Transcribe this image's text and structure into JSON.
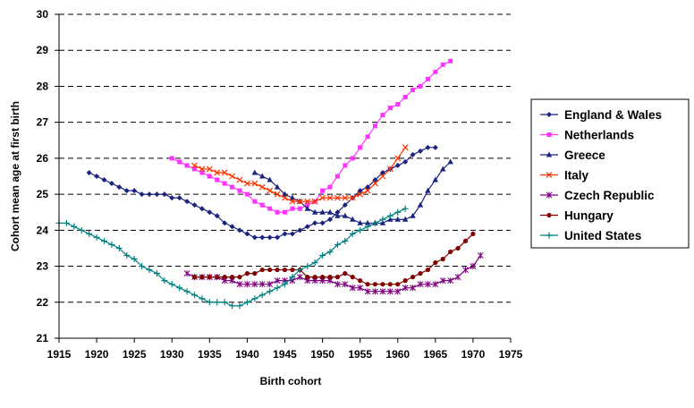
{
  "chart_data": {
    "type": "line",
    "title": "",
    "xlabel": "Birth cohort",
    "ylabel": "Cohort mean age at first birth",
    "xlim": [
      1915,
      1975
    ],
    "ylim": [
      21,
      30
    ],
    "xticks": [
      1915,
      1920,
      1925,
      1930,
      1935,
      1940,
      1945,
      1950,
      1955,
      1960,
      1965,
      1970,
      1975
    ],
    "yticks": [
      21,
      22,
      23,
      24,
      25,
      26,
      27,
      28,
      29,
      30
    ],
    "grid": "horizontal dashed",
    "legend_position": "right",
    "series": [
      {
        "name": "England & Wales",
        "color": "#1a237e",
        "marker": "diamond",
        "points": [
          [
            1919,
            25.6
          ],
          [
            1920,
            25.5
          ],
          [
            1921,
            25.4
          ],
          [
            1922,
            25.3
          ],
          [
            1923,
            25.2
          ],
          [
            1924,
            25.1
          ],
          [
            1925,
            25.1
          ],
          [
            1926,
            25.0
          ],
          [
            1927,
            25.0
          ],
          [
            1928,
            25.0
          ],
          [
            1929,
            25.0
          ],
          [
            1930,
            24.9
          ],
          [
            1931,
            24.9
          ],
          [
            1932,
            24.8
          ],
          [
            1933,
            24.7
          ],
          [
            1934,
            24.6
          ],
          [
            1935,
            24.5
          ],
          [
            1936,
            24.4
          ],
          [
            1937,
            24.2
          ],
          [
            1938,
            24.1
          ],
          [
            1939,
            24.0
          ],
          [
            1940,
            23.9
          ],
          [
            1941,
            23.8
          ],
          [
            1942,
            23.8
          ],
          [
            1943,
            23.8
          ],
          [
            1944,
            23.8
          ],
          [
            1945,
            23.9
          ],
          [
            1946,
            23.9
          ],
          [
            1947,
            24.0
          ],
          [
            1948,
            24.1
          ],
          [
            1949,
            24.2
          ],
          [
            1950,
            24.2
          ],
          [
            1951,
            24.3
          ],
          [
            1952,
            24.5
          ],
          [
            1953,
            24.7
          ],
          [
            1954,
            24.9
          ],
          [
            1955,
            25.1
          ],
          [
            1956,
            25.2
          ],
          [
            1957,
            25.4
          ],
          [
            1958,
            25.6
          ],
          [
            1959,
            25.7
          ],
          [
            1960,
            25.8
          ],
          [
            1961,
            25.9
          ],
          [
            1962,
            26.1
          ],
          [
            1963,
            26.2
          ],
          [
            1964,
            26.3
          ],
          [
            1965,
            26.3
          ]
        ]
      },
      {
        "name": "Netherlands",
        "color": "#ff33ff",
        "marker": "square",
        "points": [
          [
            1930,
            26.0
          ],
          [
            1931,
            25.9
          ],
          [
            1932,
            25.8
          ],
          [
            1933,
            25.7
          ],
          [
            1934,
            25.6
          ],
          [
            1935,
            25.5
          ],
          [
            1936,
            25.4
          ],
          [
            1937,
            25.3
          ],
          [
            1938,
            25.2
          ],
          [
            1939,
            25.1
          ],
          [
            1940,
            25.0
          ],
          [
            1941,
            24.8
          ],
          [
            1942,
            24.7
          ],
          [
            1943,
            24.6
          ],
          [
            1944,
            24.5
          ],
          [
            1945,
            24.5
          ],
          [
            1946,
            24.6
          ],
          [
            1947,
            24.6
          ],
          [
            1948,
            24.7
          ],
          [
            1949,
            24.8
          ],
          [
            1950,
            25.1
          ],
          [
            1951,
            25.2
          ],
          [
            1952,
            25.5
          ],
          [
            1953,
            25.8
          ],
          [
            1954,
            26.0
          ],
          [
            1955,
            26.3
          ],
          [
            1956,
            26.6
          ],
          [
            1957,
            26.9
          ],
          [
            1958,
            27.2
          ],
          [
            1959,
            27.4
          ],
          [
            1960,
            27.5
          ],
          [
            1961,
            27.7
          ],
          [
            1962,
            27.9
          ],
          [
            1963,
            28.0
          ],
          [
            1964,
            28.2
          ],
          [
            1965,
            28.4
          ],
          [
            1966,
            28.6
          ],
          [
            1967,
            28.7
          ]
        ]
      },
      {
        "name": "Greece",
        "color": "#1a237e",
        "marker": "triangle",
        "points": [
          [
            1941,
            25.6
          ],
          [
            1942,
            25.5
          ],
          [
            1943,
            25.4
          ],
          [
            1944,
            25.2
          ],
          [
            1945,
            25.0
          ],
          [
            1946,
            24.9
          ],
          [
            1947,
            24.8
          ],
          [
            1948,
            24.6
          ],
          [
            1949,
            24.5
          ],
          [
            1950,
            24.5
          ],
          [
            1951,
            24.5
          ],
          [
            1952,
            24.4
          ],
          [
            1953,
            24.4
          ],
          [
            1954,
            24.3
          ],
          [
            1955,
            24.2
          ],
          [
            1956,
            24.2
          ],
          [
            1957,
            24.2
          ],
          [
            1958,
            24.2
          ],
          [
            1959,
            24.3
          ],
          [
            1960,
            24.3
          ],
          [
            1961,
            24.3
          ],
          [
            1962,
            24.4
          ],
          [
            1963,
            24.7
          ],
          [
            1964,
            25.1
          ],
          [
            1965,
            25.4
          ],
          [
            1966,
            25.7
          ],
          [
            1967,
            25.9
          ]
        ]
      },
      {
        "name": "Italy",
        "color": "#ff3300",
        "marker": "x",
        "points": [
          [
            1933,
            25.8
          ],
          [
            1934,
            25.7
          ],
          [
            1935,
            25.7
          ],
          [
            1936,
            25.6
          ],
          [
            1937,
            25.6
          ],
          [
            1938,
            25.5
          ],
          [
            1939,
            25.4
          ],
          [
            1940,
            25.3
          ],
          [
            1941,
            25.3
          ],
          [
            1942,
            25.2
          ],
          [
            1943,
            25.1
          ],
          [
            1944,
            25.0
          ],
          [
            1945,
            24.9
          ],
          [
            1946,
            24.8
          ],
          [
            1947,
            24.8
          ],
          [
            1948,
            24.8
          ],
          [
            1949,
            24.8
          ],
          [
            1950,
            24.9
          ],
          [
            1951,
            24.9
          ],
          [
            1952,
            24.9
          ],
          [
            1953,
            24.9
          ],
          [
            1954,
            24.9
          ],
          [
            1955,
            25.0
          ],
          [
            1956,
            25.1
          ],
          [
            1957,
            25.3
          ],
          [
            1958,
            25.5
          ],
          [
            1959,
            25.7
          ],
          [
            1960,
            26.0
          ],
          [
            1961,
            26.3
          ]
        ]
      },
      {
        "name": "Czech Republic",
        "color": "#800080",
        "marker": "star",
        "points": [
          [
            1932,
            22.8
          ],
          [
            1933,
            22.7
          ],
          [
            1934,
            22.7
          ],
          [
            1935,
            22.7
          ],
          [
            1936,
            22.7
          ],
          [
            1937,
            22.6
          ],
          [
            1938,
            22.6
          ],
          [
            1939,
            22.5
          ],
          [
            1940,
            22.5
          ],
          [
            1941,
            22.5
          ],
          [
            1942,
            22.5
          ],
          [
            1943,
            22.5
          ],
          [
            1944,
            22.6
          ],
          [
            1945,
            22.6
          ],
          [
            1946,
            22.6
          ],
          [
            1947,
            22.7
          ],
          [
            1948,
            22.6
          ],
          [
            1949,
            22.6
          ],
          [
            1950,
            22.6
          ],
          [
            1951,
            22.6
          ],
          [
            1952,
            22.5
          ],
          [
            1953,
            22.5
          ],
          [
            1954,
            22.4
          ],
          [
            1955,
            22.4
          ],
          [
            1956,
            22.3
          ],
          [
            1957,
            22.3
          ],
          [
            1958,
            22.3
          ],
          [
            1959,
            22.3
          ],
          [
            1960,
            22.3
          ],
          [
            1961,
            22.4
          ],
          [
            1962,
            22.4
          ],
          [
            1963,
            22.5
          ],
          [
            1964,
            22.5
          ],
          [
            1965,
            22.5
          ],
          [
            1966,
            22.6
          ],
          [
            1967,
            22.6
          ],
          [
            1968,
            22.7
          ],
          [
            1969,
            22.9
          ],
          [
            1970,
            23.0
          ],
          [
            1971,
            23.3
          ]
        ]
      },
      {
        "name": "Hungary",
        "color": "#800000",
        "marker": "circle",
        "points": [
          [
            1933,
            22.7
          ],
          [
            1934,
            22.7
          ],
          [
            1935,
            22.7
          ],
          [
            1936,
            22.7
          ],
          [
            1937,
            22.7
          ],
          [
            1938,
            22.7
          ],
          [
            1939,
            22.7
          ],
          [
            1940,
            22.8
          ],
          [
            1941,
            22.8
          ],
          [
            1942,
            22.9
          ],
          [
            1943,
            22.9
          ],
          [
            1944,
            22.9
          ],
          [
            1945,
            22.9
          ],
          [
            1946,
            22.9
          ],
          [
            1947,
            22.9
          ],
          [
            1948,
            22.7
          ],
          [
            1949,
            22.7
          ],
          [
            1950,
            22.7
          ],
          [
            1951,
            22.7
          ],
          [
            1952,
            22.7
          ],
          [
            1953,
            22.8
          ],
          [
            1954,
            22.7
          ],
          [
            1955,
            22.6
          ],
          [
            1956,
            22.5
          ],
          [
            1957,
            22.5
          ],
          [
            1958,
            22.5
          ],
          [
            1959,
            22.5
          ],
          [
            1960,
            22.5
          ],
          [
            1961,
            22.6
          ],
          [
            1962,
            22.7
          ],
          [
            1963,
            22.8
          ],
          [
            1964,
            22.9
          ],
          [
            1965,
            23.1
          ],
          [
            1966,
            23.2
          ],
          [
            1967,
            23.4
          ],
          [
            1968,
            23.5
          ],
          [
            1969,
            23.7
          ],
          [
            1970,
            23.9
          ]
        ]
      },
      {
        "name": "United States",
        "color": "#008080",
        "marker": "plus",
        "points": [
          [
            1915,
            24.2
          ],
          [
            1916,
            24.2
          ],
          [
            1917,
            24.1
          ],
          [
            1918,
            24.0
          ],
          [
            1919,
            23.9
          ],
          [
            1920,
            23.8
          ],
          [
            1921,
            23.7
          ],
          [
            1922,
            23.6
          ],
          [
            1923,
            23.5
          ],
          [
            1924,
            23.3
          ],
          [
            1925,
            23.2
          ],
          [
            1926,
            23.0
          ],
          [
            1927,
            22.9
          ],
          [
            1928,
            22.8
          ],
          [
            1929,
            22.6
          ],
          [
            1930,
            22.5
          ],
          [
            1931,
            22.4
          ],
          [
            1932,
            22.3
          ],
          [
            1933,
            22.2
          ],
          [
            1934,
            22.1
          ],
          [
            1935,
            22.0
          ],
          [
            1936,
            22.0
          ],
          [
            1937,
            22.0
          ],
          [
            1938,
            21.9
          ],
          [
            1939,
            21.9
          ],
          [
            1940,
            22.0
          ],
          [
            1941,
            22.1
          ],
          [
            1942,
            22.2
          ],
          [
            1943,
            22.3
          ],
          [
            1944,
            22.4
          ],
          [
            1945,
            22.5
          ],
          [
            1946,
            22.7
          ],
          [
            1947,
            22.9
          ],
          [
            1948,
            23.0
          ],
          [
            1949,
            23.1
          ],
          [
            1950,
            23.3
          ],
          [
            1951,
            23.4
          ],
          [
            1952,
            23.6
          ],
          [
            1953,
            23.7
          ],
          [
            1954,
            23.9
          ],
          [
            1955,
            24.0
          ],
          [
            1956,
            24.1
          ],
          [
            1957,
            24.2
          ],
          [
            1958,
            24.3
          ],
          [
            1959,
            24.4
          ],
          [
            1960,
            24.5
          ],
          [
            1961,
            24.6
          ]
        ]
      }
    ]
  }
}
